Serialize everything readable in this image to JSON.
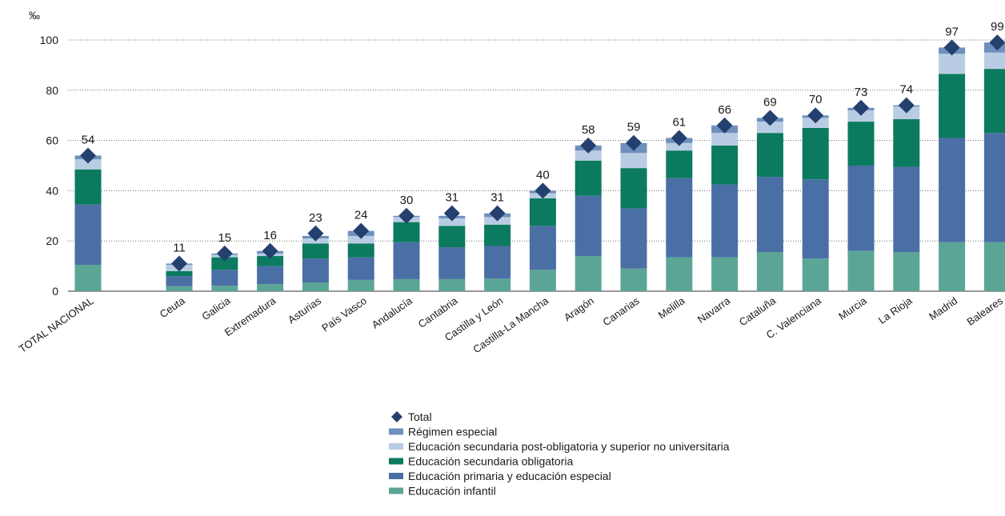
{
  "chart_data": {
    "type": "bar",
    "stacked": true,
    "title": "",
    "xlabel": "",
    "ylabel": "‰",
    "ylim": [
      0,
      100
    ],
    "yticks": [
      "0",
      "20",
      "40",
      "60",
      "80",
      "100"
    ],
    "grid": "horizontal dotted",
    "legend_position": "bottom-center",
    "categories": [
      "TOTAL NACIONAL",
      "Ceuta",
      "Galicia",
      "Extremadura",
      "Asturias",
      "País Vasco",
      "Andalucía",
      "Cantabria",
      "Castilla y León",
      "Castilla-La Mancha",
      "Aragón",
      "Canarias",
      "Melilla",
      "Navarra",
      "Cataluña",
      "C. Valenciana",
      "Murcia",
      "La Rioja",
      "Madrid",
      "Baleares"
    ],
    "series": [
      {
        "name": "Educación infantil",
        "color": "#5ba596",
        "values": [
          10.5,
          2,
          2.2,
          2.8,
          3.5,
          4.5,
          4.8,
          4.8,
          5,
          8.5,
          14,
          9,
          13.5,
          13.5,
          15.5,
          13,
          16,
          15.5,
          19.5,
          19.5
        ]
      },
      {
        "name": "Educación primaria y educación especial",
        "color": "#4a6fa5",
        "values": [
          24,
          4,
          6.3,
          7.2,
          9.5,
          9,
          14.7,
          12.7,
          13,
          17.5,
          24,
          24,
          31.5,
          29,
          30,
          31.5,
          34,
          34,
          41.5,
          43.5
        ]
      },
      {
        "name": "Educación secundaria obligatoria",
        "color": "#0b7a5e",
        "values": [
          14,
          2,
          5,
          4,
          6,
          5.5,
          8,
          8.5,
          8.5,
          11,
          14,
          16,
          11,
          15.5,
          17.5,
          20.5,
          17.5,
          19,
          25.5,
          25.5
        ]
      },
      {
        "name": "Educación secundaria post-obligatoria y superior no universitaria",
        "color": "#b8cde3",
        "values": [
          4,
          2.5,
          1,
          1,
          2,
          3,
          2,
          3,
          3,
          2,
          4,
          6,
          3,
          5,
          4.5,
          4,
          4.5,
          5,
          8,
          6.5
        ]
      },
      {
        "name": "Régimen especial",
        "color": "#6f8fbd",
        "values": [
          1.5,
          0.5,
          0.5,
          1,
          1,
          2,
          0.5,
          1,
          1.5,
          1,
          2,
          4,
          2,
          3,
          1.5,
          1,
          1,
          0.5,
          2.5,
          4
        ]
      }
    ],
    "totals": {
      "name": "Total",
      "color": "#24406e",
      "values": [
        54,
        11,
        15,
        16,
        23,
        24,
        30,
        31,
        31,
        40,
        58,
        59,
        61,
        66,
        69,
        70,
        73,
        74,
        97,
        99
      ]
    }
  }
}
